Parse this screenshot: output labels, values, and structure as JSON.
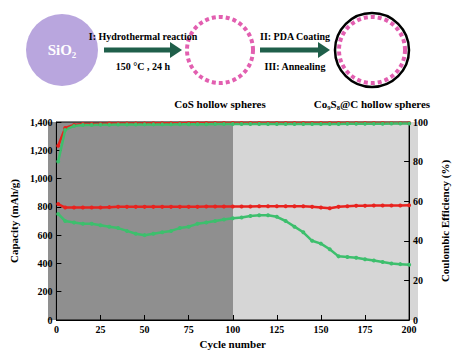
{
  "diagram": {
    "nodes": [
      {
        "label": "SiO₂"
      },
      {
        "label": "CoS hollow spheres"
      },
      {
        "label": "Co₉S₈@C hollow spheres"
      }
    ],
    "arrows": [
      {
        "above": "I: Hydrothermal reaction",
        "below": "150 °C , 24 h"
      },
      {
        "above": "II: PDA Coating",
        "below": "III: Annealing"
      }
    ]
  },
  "chart_data": {
    "type": "line",
    "xlabel": "Cycle number",
    "ylabel": "Capacity (mAh/g)",
    "y2label": "Coulombic Efficiency (%)",
    "x": [
      1,
      5,
      10,
      15,
      20,
      25,
      30,
      35,
      40,
      45,
      50,
      55,
      60,
      65,
      70,
      75,
      80,
      85,
      90,
      95,
      100,
      105,
      110,
      115,
      120,
      125,
      130,
      135,
      140,
      145,
      150,
      155,
      160,
      165,
      170,
      175,
      180,
      185,
      190,
      195,
      200
    ],
    "xlim": [
      0,
      200
    ],
    "xticks": [
      0,
      25,
      50,
      75,
      100,
      125,
      150,
      175,
      200
    ],
    "ylim": [
      0,
      1400
    ],
    "yticks": [
      0,
      200,
      400,
      600,
      800,
      1000,
      1200,
      1400
    ],
    "y2lim": [
      0,
      100
    ],
    "y2ticks": [
      0,
      20,
      40,
      60,
      80,
      100
    ],
    "grid": false,
    "marker": "circle",
    "series": [
      {
        "color": "#e8231f",
        "values": [
          820,
          795,
          795,
          795,
          795,
          795,
          798,
          800,
          800,
          800,
          800,
          800,
          800,
          800,
          800,
          800,
          800,
          802,
          802,
          802,
          802,
          803,
          803,
          805,
          805,
          805,
          805,
          805,
          805,
          800,
          795,
          790,
          800,
          805,
          808,
          808,
          810,
          810,
          810,
          810,
          812
        ]
      },
      {
        "color": "#3dbf6d",
        "values": [
          750,
          700,
          690,
          680,
          680,
          670,
          660,
          650,
          630,
          610,
          600,
          610,
          620,
          630,
          650,
          660,
          680,
          690,
          700,
          710,
          720,
          725,
          735,
          740,
          740,
          730,
          700,
          660,
          620,
          560,
          540,
          500,
          450,
          445,
          440,
          430,
          420,
          410,
          400,
          395,
          390
        ]
      },
      {
        "color": "#e8231f",
        "axis": "y2",
        "values": [
          88,
          97,
          98.5,
          99,
          99,
          99,
          99.2,
          99.2,
          99.3,
          99.3,
          99.3,
          99.4,
          99.4,
          99.4,
          99.4,
          99.5,
          99.5,
          99.5,
          99.5,
          99.5,
          99.5,
          99.5,
          99.5,
          99.5,
          99.5,
          99.5,
          99.5,
          99.5,
          99.5,
          99.5,
          99.5,
          99.5,
          99.5,
          99.5,
          99.5,
          99.5,
          99.5,
          99.5,
          99.5,
          99.5,
          99.5
        ]
      },
      {
        "color": "#3dbf6d",
        "axis": "y2",
        "values": [
          80,
          96,
          98,
          98.5,
          98.5,
          98.6,
          98.6,
          98.7,
          98.7,
          98.7,
          98.8,
          98.8,
          98.8,
          98.8,
          98.9,
          98.9,
          98.9,
          98.9,
          99,
          99,
          99,
          99,
          99,
          99,
          99,
          99,
          99,
          99,
          99,
          99,
          99,
          99,
          99,
          99.1,
          99.1,
          99.1,
          99.1,
          99.1,
          99.2,
          99.2,
          99.2
        ]
      }
    ]
  }
}
